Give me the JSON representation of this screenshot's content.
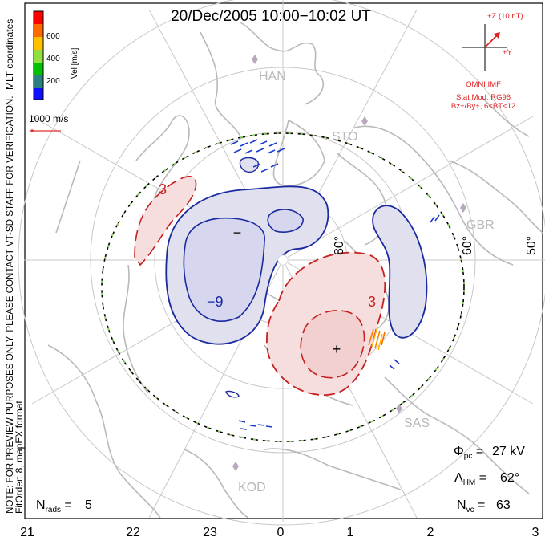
{
  "title": "20/Dec/2005 10:00−10:02 UT",
  "colorbar": {
    "label": "Vel [m/s]",
    "ticks": [
      "600",
      "400",
      "200"
    ],
    "colors": [
      "#ff0000",
      "#ff6a00",
      "#ffc000",
      "#90e040",
      "#00c000",
      "#2a8080",
      "#1010ff"
    ]
  },
  "coord_label": "MLT coordinates",
  "vector_scale": "1000 m/s",
  "watermark": "NOTE: FOR PREVIEW PURPOSES ONLY. PLEASE CONTACT VT-SD STAFF FOR VERIFICATION.",
  "fit_info": "FitOrder: 8, mapEX format",
  "imf": {
    "z_label": "+Z (10 nT)",
    "y_label": "+Y",
    "source": "OMNI IMF",
    "model": "Stat Mod: RG96",
    "condition": "Bz+/By+, 6<BT<12"
  },
  "stations": [
    "HAN",
    "STO",
    "GBR",
    "SAS",
    "KOD"
  ],
  "lat_labels": [
    "80°",
    "60°",
    "50°"
  ],
  "contour_labels": [
    "3",
    "−9",
    "3"
  ],
  "extremum_markers": [
    "−",
    "+"
  ],
  "stats": {
    "phi_pc": "27 kV",
    "lambda_hm": "62°",
    "n_vc": "63",
    "n_rads": "5"
  },
  "mlt_ticks": [
    "21",
    "22",
    "23",
    "0",
    "1",
    "2",
    "3"
  ]
}
